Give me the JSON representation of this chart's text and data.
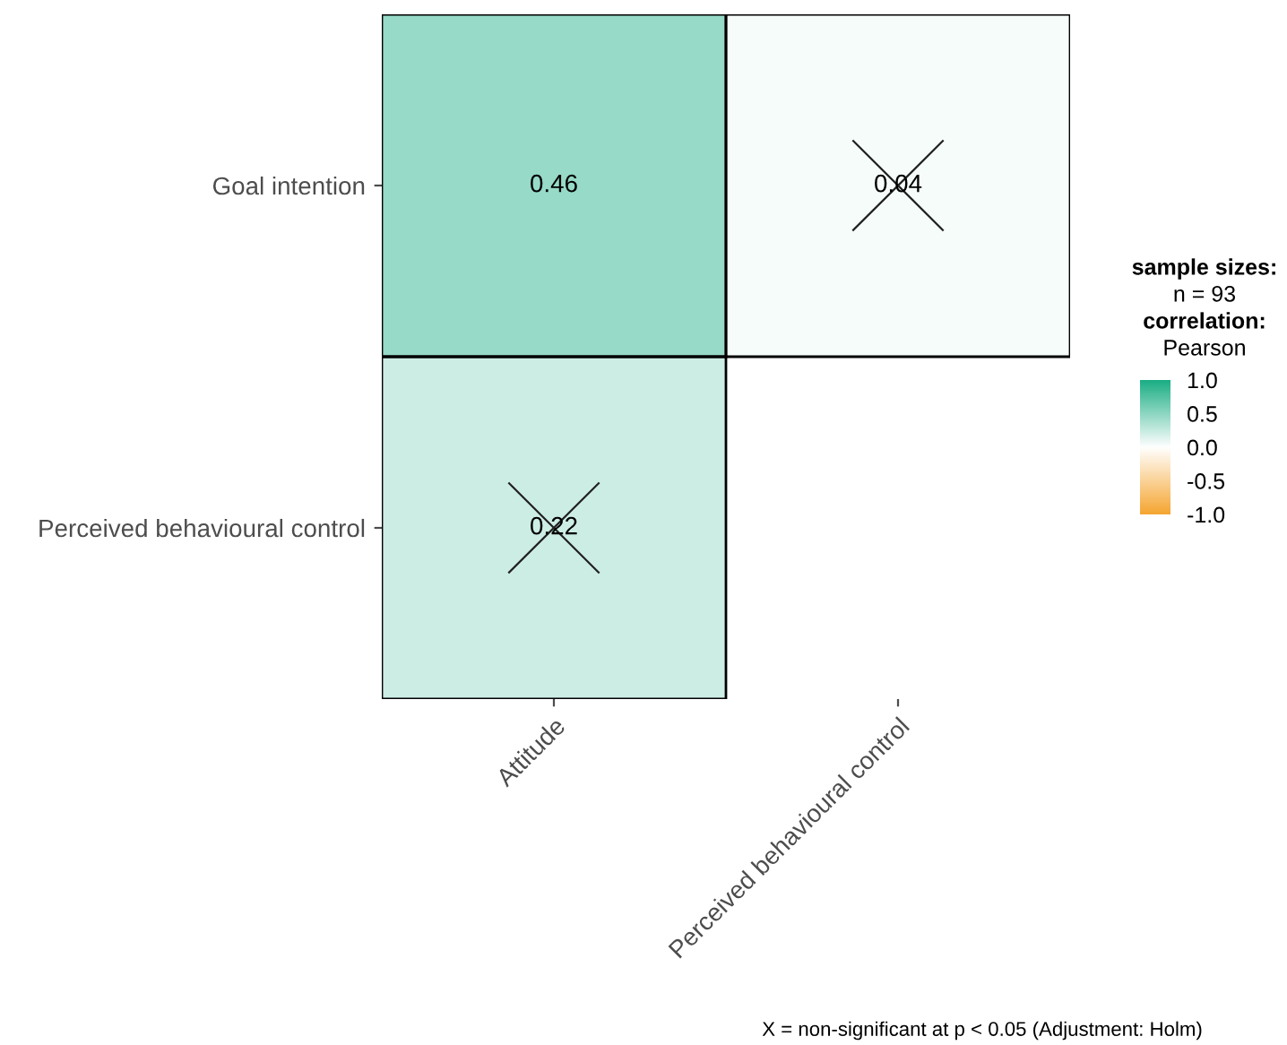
{
  "chart_data": {
    "type": "heatmap",
    "categories": [
      "Attitude",
      "Perceived behavioural control"
    ],
    "y_categories": [
      "Goal intention",
      "Perceived behavioural control"
    ],
    "cells": [
      [
        0.46,
        0.04
      ],
      [
        0.22,
        null
      ]
    ],
    "cell_labels": [
      [
        "0.46",
        "0.04"
      ],
      [
        "0.22",
        null
      ]
    ],
    "clim": [
      -1.0,
      1.0
    ],
    "cticks": [
      {
        "value": 1.0,
        "label": "1.0"
      },
      {
        "value": 0.5,
        "label": "0.5"
      },
      {
        "value": 0.0,
        "label": "0.0"
      },
      {
        "value": -0.5,
        "label": "-0.5"
      },
      {
        "value": -1.0,
        "label": "-1.0"
      }
    ],
    "legend_title": "sample sizes:",
    "clabel": "Pearson",
    "annotations": [
      "n = 93",
      "correlation:",
      "X = non-significant at p < 0.05 (Adjustment: Holm)"
    ],
    "grid": false
  }
}
